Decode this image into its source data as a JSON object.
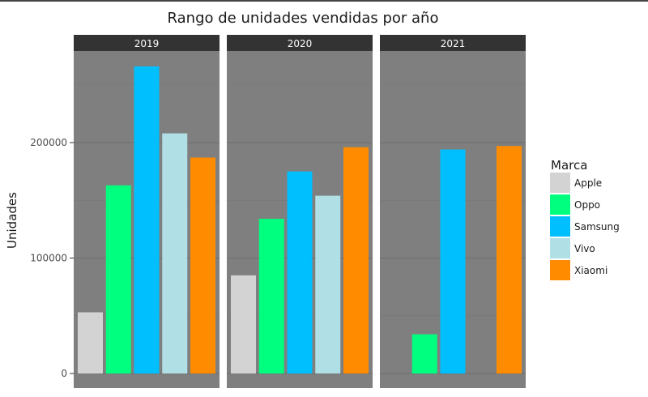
{
  "chart_data": {
    "type": "bar",
    "title": "Rango de unidades vendidas por año",
    "xlabel": "",
    "ylabel": "Unidades",
    "ylim": [
      0,
      300000
    ],
    "yticks": [
      0,
      100000,
      200000
    ],
    "ytick_labels": [
      "0",
      "100000",
      "200000"
    ],
    "grid": true,
    "facets": [
      "2019",
      "2020",
      "2021"
    ],
    "categories": [
      "Apple",
      "Oppo",
      "Samsung",
      "Vivo",
      "Xiaomi"
    ],
    "legend": {
      "title": "Marca",
      "position": "right",
      "entries": [
        "Apple",
        "Oppo",
        "Samsung",
        "Vivo",
        "Xiaomi"
      ]
    },
    "colors": {
      "Apple": "#d3d3d3",
      "Oppo": "#00ff7f",
      "Samsung": "#00bfff",
      "Vivo": "#b0e0e6",
      "Xiaomi": "#ff8c00"
    },
    "panel_background": "#7f7f7f",
    "strip_background": "#333333",
    "values": {
      "2019": {
        "Apple": 53000,
        "Oppo": 163000,
        "Samsung": 266000,
        "Vivo": 208000,
        "Xiaomi": 187000
      },
      "2020": {
        "Apple": 85000,
        "Oppo": 134000,
        "Samsung": 175000,
        "Vivo": 154000,
        "Xiaomi": 196000
      },
      "2021": {
        "Apple": null,
        "Oppo": 34000,
        "Samsung": 194000,
        "Vivo": null,
        "Xiaomi": 197000
      }
    }
  }
}
